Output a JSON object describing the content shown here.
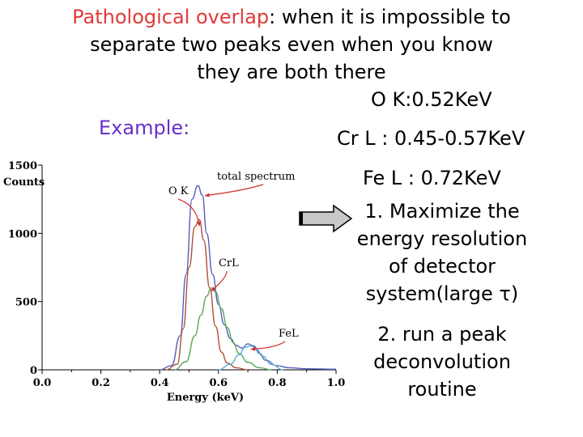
{
  "slide": {
    "title_highlight": "Pathological overlap",
    "title_rest_line1": ": when it is impossible to",
    "title_line2": "separate two peaks even when you know",
    "title_line3": "they are both there",
    "example_label": "Example:",
    "energies": {
      "o_k": "O K:0.52KeV",
      "cr_l": "Cr L : 0.45-0.57KeV",
      "fe_l": "Fe L : 0.72KeV"
    },
    "step1": [
      "1. Maximize the",
      "energy resolution",
      "of detector",
      "system(large τ)"
    ],
    "step2": [
      "2. run a peak",
      "deconvolution",
      "routine"
    ],
    "colors": {
      "highlight": "#e03a3a",
      "example": "#6a2fc8",
      "total": "#5560b8",
      "ok": "#b0503a",
      "crl": "#5aa85a",
      "fel": "#5ab0d8",
      "annotation_arrow": "#d03030",
      "block_arrow": "#c8c8c8"
    }
  },
  "chart_data": {
    "type": "line",
    "xlabel": "Energy (keV)",
    "ylabel": "Counts",
    "xlim": [
      0.0,
      1.0
    ],
    "ylim": [
      0,
      1500
    ],
    "x_ticks": [
      "0.0",
      "0.2",
      "0.4",
      "0.6",
      "0.8",
      "1.0"
    ],
    "y_ticks": [
      "0",
      "500",
      "1000",
      "1500"
    ],
    "grid": false,
    "series": [
      {
        "name": "total spectrum",
        "x": [
          0.4,
          0.44,
          0.47,
          0.49,
          0.51,
          0.53,
          0.545,
          0.56,
          0.58,
          0.6,
          0.62,
          0.64,
          0.66,
          0.68,
          0.7,
          0.72,
          0.74,
          0.76,
          0.8,
          0.84,
          0.9,
          1.0
        ],
        "y": [
          0,
          30,
          250,
          700,
          1250,
          1350,
          1280,
          1000,
          700,
          480,
          330,
          230,
          180,
          160,
          190,
          175,
          120,
          70,
          30,
          15,
          8,
          5
        ]
      },
      {
        "name": "O K",
        "x": [
          0.42,
          0.46,
          0.48,
          0.5,
          0.52,
          0.535,
          0.55,
          0.57,
          0.59,
          0.61,
          0.63,
          0.66,
          0.7
        ],
        "y": [
          0,
          40,
          300,
          750,
          1050,
          1100,
          950,
          600,
          320,
          130,
          50,
          15,
          0
        ]
      },
      {
        "name": "CrL",
        "x": [
          0.45,
          0.49,
          0.52,
          0.54,
          0.56,
          0.575,
          0.59,
          0.61,
          0.63,
          0.65,
          0.67,
          0.7,
          0.74,
          0.78
        ],
        "y": [
          0,
          60,
          250,
          400,
          540,
          600,
          570,
          450,
          310,
          200,
          120,
          55,
          15,
          0
        ]
      },
      {
        "name": "FeL",
        "x": [
          0.6,
          0.64,
          0.67,
          0.69,
          0.71,
          0.73,
          0.75,
          0.78,
          0.82
        ],
        "y": [
          0,
          40,
          110,
          165,
          175,
          150,
          100,
          40,
          0
        ]
      }
    ],
    "annotations": [
      {
        "text": "total spectrum",
        "points_to": [
          0.54,
          1300
        ]
      },
      {
        "text": "O K",
        "points_to": [
          0.535,
          1100
        ]
      },
      {
        "text": "CrL",
        "points_to": [
          0.575,
          600
        ]
      },
      {
        "text": "FeL",
        "points_to": [
          0.71,
          175
        ]
      }
    ]
  }
}
